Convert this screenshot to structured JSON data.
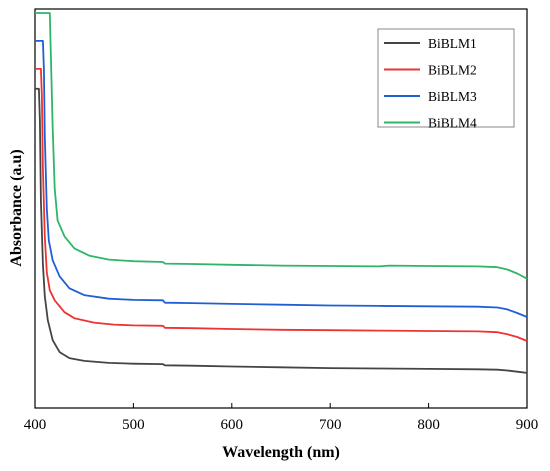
{
  "chart_data": {
    "type": "line",
    "title": "",
    "xlabel": "Wavelength (nm)",
    "ylabel": "Absorbance (a.u)",
    "xlim": [
      400,
      900
    ],
    "ylim": [
      0,
      1
    ],
    "xticks": [
      400,
      500,
      600,
      700,
      800,
      900
    ],
    "y_ticks_labeled": false,
    "grid": false,
    "legend_position": "top-right",
    "series": [
      {
        "name": "BiBLM1",
        "color": "#444444",
        "points": [
          [
            400,
            0.8
          ],
          [
            404,
            0.8
          ],
          [
            405,
            0.72
          ],
          [
            406,
            0.52
          ],
          [
            408,
            0.36
          ],
          [
            410,
            0.28
          ],
          [
            413,
            0.22
          ],
          [
            418,
            0.17
          ],
          [
            425,
            0.14
          ],
          [
            435,
            0.125
          ],
          [
            450,
            0.118
          ],
          [
            475,
            0.113
          ],
          [
            500,
            0.111
          ],
          [
            530,
            0.11
          ],
          [
            532,
            0.107
          ],
          [
            560,
            0.106
          ],
          [
            600,
            0.104
          ],
          [
            650,
            0.102
          ],
          [
            700,
            0.1
          ],
          [
            750,
            0.099
          ],
          [
            800,
            0.098
          ],
          [
            850,
            0.097
          ],
          [
            870,
            0.096
          ],
          [
            880,
            0.094
          ],
          [
            890,
            0.091
          ],
          [
            900,
            0.088
          ]
        ]
      },
      {
        "name": "BiBLM2",
        "color": "#ee3333",
        "points": [
          [
            400,
            0.85
          ],
          [
            406,
            0.85
          ],
          [
            407,
            0.78
          ],
          [
            408,
            0.6
          ],
          [
            410,
            0.43
          ],
          [
            412,
            0.34
          ],
          [
            415,
            0.295
          ],
          [
            420,
            0.27
          ],
          [
            430,
            0.24
          ],
          [
            440,
            0.225
          ],
          [
            460,
            0.214
          ],
          [
            480,
            0.209
          ],
          [
            500,
            0.207
          ],
          [
            530,
            0.206
          ],
          [
            532,
            0.201
          ],
          [
            560,
            0.2
          ],
          [
            600,
            0.198
          ],
          [
            650,
            0.196
          ],
          [
            700,
            0.195
          ],
          [
            750,
            0.194
          ],
          [
            800,
            0.193
          ],
          [
            850,
            0.192
          ],
          [
            870,
            0.19
          ],
          [
            880,
            0.185
          ],
          [
            890,
            0.178
          ],
          [
            900,
            0.168
          ]
        ]
      },
      {
        "name": "BiBLM3",
        "color": "#1f5fd6",
        "points": [
          [
            400,
            0.92
          ],
          [
            408,
            0.92
          ],
          [
            409,
            0.85
          ],
          [
            410,
            0.68
          ],
          [
            412,
            0.5
          ],
          [
            414,
            0.42
          ],
          [
            418,
            0.37
          ],
          [
            425,
            0.33
          ],
          [
            435,
            0.3
          ],
          [
            450,
            0.283
          ],
          [
            475,
            0.274
          ],
          [
            500,
            0.271
          ],
          [
            530,
            0.27
          ],
          [
            532,
            0.264
          ],
          [
            560,
            0.263
          ],
          [
            600,
            0.261
          ],
          [
            650,
            0.259
          ],
          [
            700,
            0.257
          ],
          [
            750,
            0.256
          ],
          [
            800,
            0.255
          ],
          [
            850,
            0.254
          ],
          [
            870,
            0.252
          ],
          [
            880,
            0.247
          ],
          [
            890,
            0.238
          ],
          [
            900,
            0.228
          ]
        ]
      },
      {
        "name": "BiBLM4",
        "color": "#2fb56a",
        "points": [
          [
            400,
            0.99
          ],
          [
            415,
            0.99
          ],
          [
            416,
            0.9
          ],
          [
            418,
            0.7
          ],
          [
            420,
            0.55
          ],
          [
            423,
            0.47
          ],
          [
            430,
            0.43
          ],
          [
            440,
            0.4
          ],
          [
            455,
            0.382
          ],
          [
            475,
            0.372
          ],
          [
            500,
            0.368
          ],
          [
            530,
            0.366
          ],
          [
            532,
            0.362
          ],
          [
            560,
            0.361
          ],
          [
            600,
            0.359
          ],
          [
            650,
            0.357
          ],
          [
            700,
            0.356
          ],
          [
            750,
            0.355
          ],
          [
            760,
            0.357
          ],
          [
            800,
            0.356
          ],
          [
            850,
            0.355
          ],
          [
            870,
            0.353
          ],
          [
            880,
            0.347
          ],
          [
            890,
            0.337
          ],
          [
            900,
            0.324
          ]
        ]
      }
    ]
  }
}
